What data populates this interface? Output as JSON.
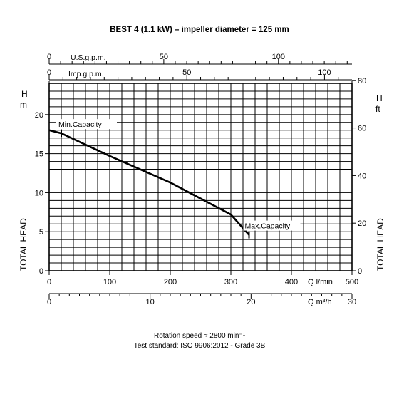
{
  "chart_data": {
    "type": "line",
    "title": "BEST 4 (1.1 kW) – impeller diameter = 125 mm",
    "footer": [
      "Rotation speed ≈ 2800 min⁻¹",
      "Test standard: ISO 9906:2012 - Grade 3B"
    ],
    "y_label_left": "TOTAL HEAD",
    "y_label_right": "TOTAL HEAD",
    "y_unit_left": "H m",
    "y_unit_right": "H ft",
    "top_axis_1_label": "U.S.g.p.m.",
    "top_axis_2_label": "Imp.g.p.m.",
    "x_axis_1_unit": "Q l/min",
    "x_axis_2_unit": "Q m³/h",
    "x_lpm_range": [
      0,
      500
    ],
    "y_m_range": [
      0,
      24
    ],
    "x_lpm_ticks": [
      0,
      100,
      200,
      300,
      400,
      500
    ],
    "x_m3h_ticks": [
      0,
      10,
      20,
      30
    ],
    "us_gpm_ticks": [
      0,
      50,
      100
    ],
    "imp_gpm_ticks": [
      0,
      50,
      100
    ],
    "y_m_ticks": [
      0,
      5,
      10,
      15,
      20
    ],
    "y_ft_ticks": [
      0,
      20,
      40,
      60,
      80
    ],
    "grid": true,
    "series": [
      {
        "x_lpm": [
          0,
          20,
          100,
          200,
          300,
          330
        ],
        "y_m": [
          18,
          17.6,
          14.7,
          11.3,
          7.2,
          4.6
        ]
      }
    ],
    "annotations": [
      {
        "text": "Min.Capacity",
        "x_lpm": 20,
        "y_m": 17.6
      },
      {
        "text": "Max.Capacity",
        "x_lpm": 330,
        "y_m": 4.6
      }
    ]
  }
}
